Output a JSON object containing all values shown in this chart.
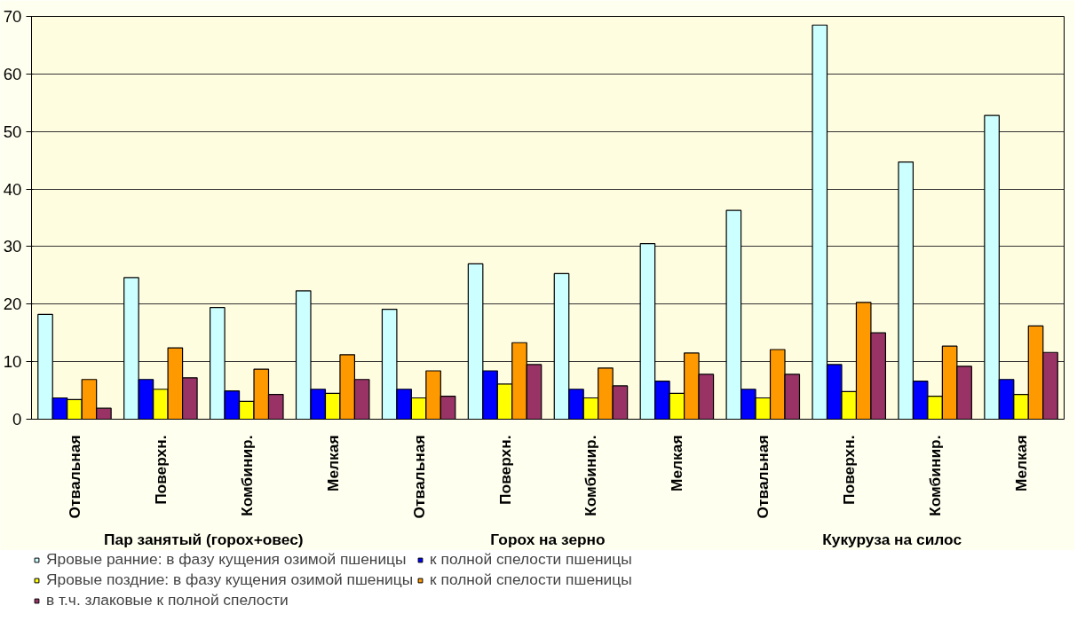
{
  "chart_data": {
    "type": "bar",
    "categories": [
      "Отвальная",
      "Поверхн.",
      "Комбинир.",
      "Мелкая",
      "Отвальная",
      "Поверхн.",
      "Комбинир.",
      "Мелкая",
      "Отвальная",
      "Поверхн.",
      "Комбинир.",
      "Мелкая"
    ],
    "series": [
      {
        "name": "Яровые ранние: в фазу кущения озимой пшеницы",
        "color": "#ccffff",
        "values": [
          18.2,
          24.6,
          19.4,
          22.3,
          19.1,
          27.0,
          25.3,
          30.5,
          36.3,
          68.5,
          44.7,
          52.8
        ]
      },
      {
        "name": "к полной спелости пшеницы",
        "color": "#0000ff",
        "values": [
          3.7,
          6.9,
          4.9,
          5.2,
          5.2,
          8.4,
          5.2,
          6.6,
          5.2,
          9.5,
          6.6,
          6.9
        ]
      },
      {
        "name": "Яровые поздние: в фазу кущения озимой пшеницы",
        "color": "#ffff00",
        "values": [
          3.4,
          5.2,
          3.1,
          4.5,
          3.7,
          6.1,
          3.7,
          4.5,
          3.7,
          4.8,
          4.0,
          4.3
        ]
      },
      {
        "name": "к полной спелости пшеницы",
        "color": "#ff9900",
        "values": [
          6.9,
          12.4,
          8.7,
          11.2,
          8.4,
          13.3,
          8.9,
          11.5,
          12.1,
          20.3,
          12.7,
          16.2
        ]
      },
      {
        "name": "в т.ч. злаковые к полной спелости",
        "color": "#993366",
        "values": [
          1.9,
          7.2,
          4.3,
          6.9,
          4.0,
          9.5,
          5.8,
          7.8,
          7.8,
          15.0,
          9.2,
          11.6
        ]
      }
    ],
    "annotations": [
      "Пар занятый (горох+овес)",
      "Горох на зерно",
      "Кукуруза на силос"
    ],
    "ylim": [
      0,
      70
    ],
    "yticks": [
      0,
      10,
      20,
      30,
      40,
      50,
      60,
      70
    ],
    "grid": "y",
    "legend": "bottom"
  }
}
